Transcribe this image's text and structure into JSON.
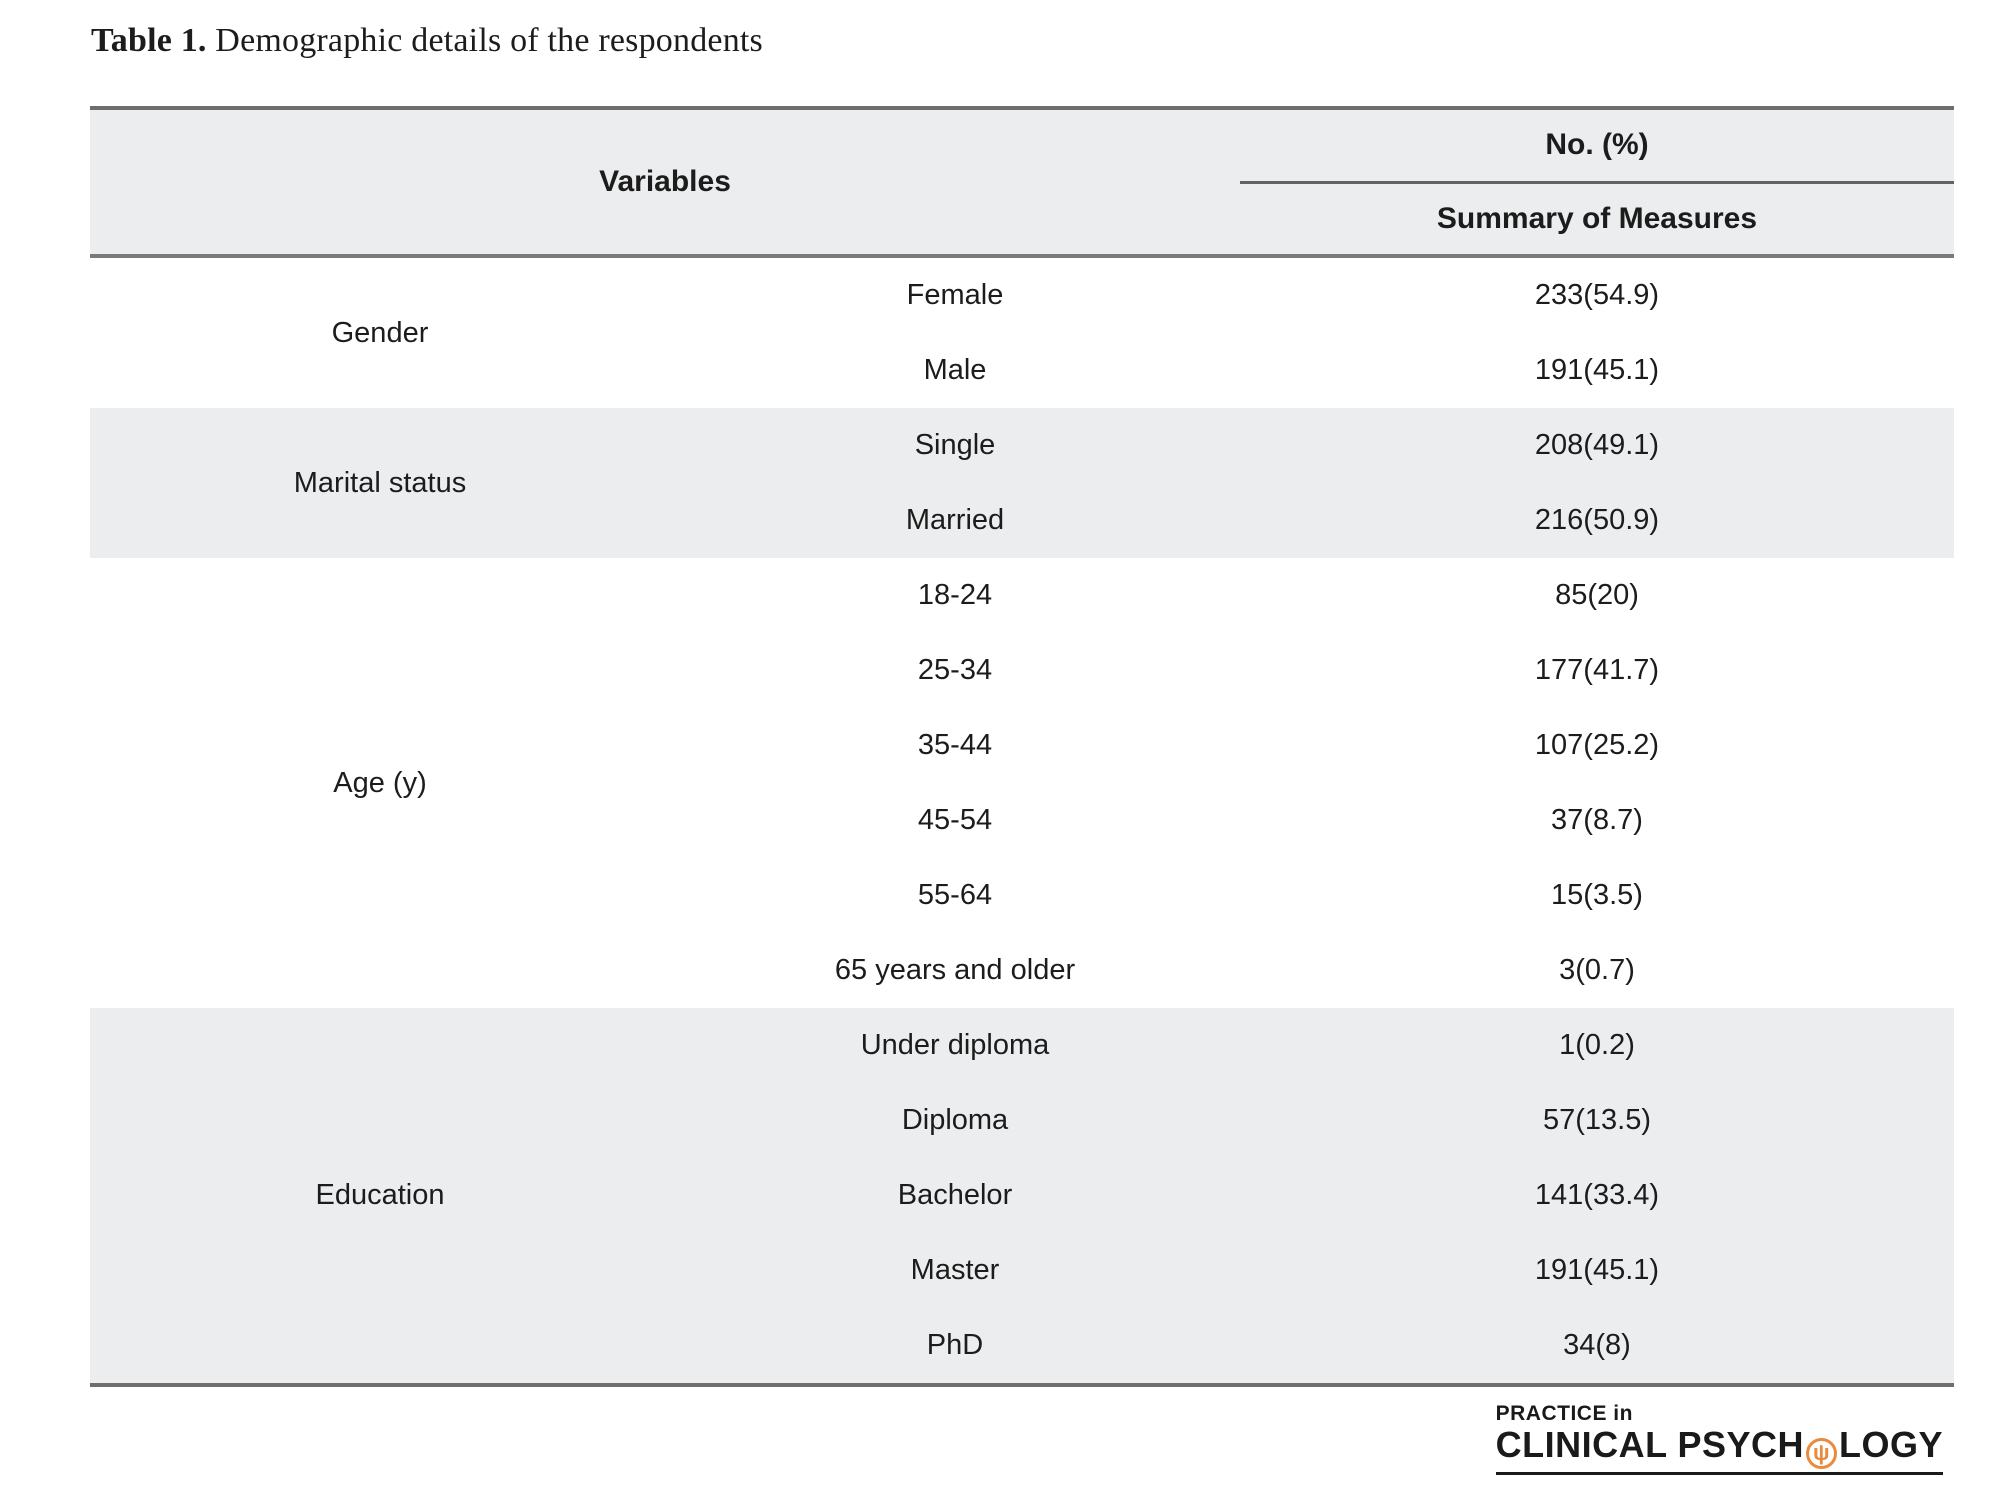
{
  "title": {
    "label": "Table 1.",
    "text": " Demographic details of the respondents"
  },
  "table": {
    "header": {
      "variables": "Variables",
      "no_pct": "No. (%)",
      "summary": "Summary of Measures"
    },
    "groups": [
      {
        "label": "Gender",
        "shaded": false,
        "rows": [
          {
            "category": "Female",
            "value": "233(54.9)"
          },
          {
            "category": "Male",
            "value": "191(45.1)"
          }
        ]
      },
      {
        "label": "Marital status",
        "shaded": true,
        "rows": [
          {
            "category": "Single",
            "value": "208(49.1)"
          },
          {
            "category": "Married",
            "value": "216(50.9)"
          }
        ]
      },
      {
        "label": "Age (y)",
        "shaded": false,
        "rows": [
          {
            "category": "18-24",
            "value": "85(20)"
          },
          {
            "category": "25-34",
            "value": "177(41.7)"
          },
          {
            "category": "35-44",
            "value": "107(25.2)"
          },
          {
            "category": "45-54",
            "value": "37(8.7)"
          },
          {
            "category": "55-64",
            "value": "15(3.5)"
          },
          {
            "category": "65 years and older",
            "value": "3(0.7)"
          }
        ]
      },
      {
        "label": "Education",
        "shaded": true,
        "rows": [
          {
            "category": "Under diploma",
            "value": "1(0.2)"
          },
          {
            "category": "Diploma",
            "value": "57(13.5)"
          },
          {
            "category": "Bachelor",
            "value": "141(33.4)"
          },
          {
            "category": "Master",
            "value": "191(45.1)"
          },
          {
            "category": "PhD",
            "value": "34(8)"
          }
        ]
      }
    ]
  },
  "logo": {
    "line1": "PRACTICE in",
    "line2_pre": "CLINICAL PSYCH",
    "line2_icon": "psi",
    "line2_post": "LOGY"
  },
  "colors": {
    "band_gray": "#ebedee",
    "border_heavy": "#6e6e6e",
    "border_light": "#636363",
    "accent_orange": "#e98a3c",
    "text": "#1c1c1c"
  }
}
